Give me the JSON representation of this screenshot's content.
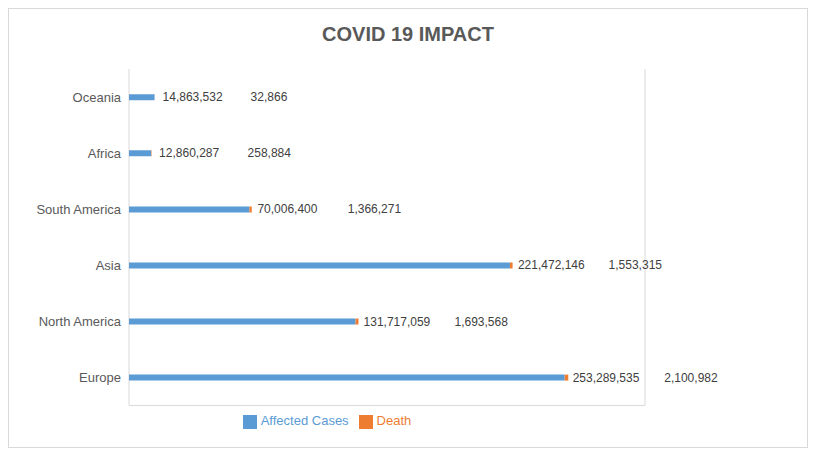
{
  "chart_data": {
    "type": "bar",
    "title": "COVID 19 IMPACT",
    "orientation": "horizontal",
    "stacked": true,
    "categories": [
      "Oceania",
      "Africa",
      "South America",
      "Asia",
      "North America",
      "Europe"
    ],
    "series": [
      {
        "name": "Affected Cases",
        "color": "#5b9bd5",
        "values": [
          14863532,
          12860287,
          70006400,
          221472146,
          131717059,
          253289535
        ],
        "value_labels": [
          "14,863,532",
          "12,860,287",
          "70,006,400",
          "221,472,146",
          "131,717,059",
          "253,289,535"
        ]
      },
      {
        "name": "Death",
        "color": "#ed7d31",
        "values": [
          32866,
          258884,
          1366271,
          1553315,
          1693568,
          2100982
        ],
        "value_labels": [
          "32,866",
          "258,884",
          "1,366,271",
          "1,553,315",
          "1,693,568",
          "2,100,982"
        ]
      }
    ],
    "xlim": [
      0,
      300000000
    ],
    "xticks": [
      0,
      50000000,
      100000000,
      150000000,
      200000000,
      250000000,
      300000000
    ],
    "grid": true,
    "data_labels": true,
    "tick_labels": "y",
    "legend": "bottom"
  }
}
